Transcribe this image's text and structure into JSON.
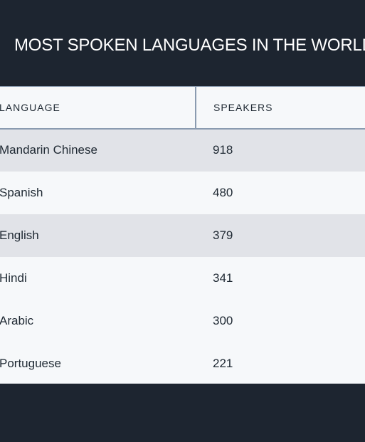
{
  "page": {
    "title": "MOST SPOKEN LANGUAGES IN THE WORLD."
  },
  "table": {
    "headers": {
      "language": "LANGUAGE",
      "speakers": "SPEAKERS"
    },
    "rows": [
      {
        "language": "Mandarin Chinese",
        "speakers": "918"
      },
      {
        "language": "Spanish",
        "speakers": "480"
      },
      {
        "language": "English",
        "speakers": "379"
      },
      {
        "language": "Hindi",
        "speakers": "341"
      },
      {
        "language": "Arabic",
        "speakers": "300"
      },
      {
        "language": "Portuguese",
        "speakers": "221"
      }
    ]
  },
  "colors": {
    "background": "#1d2530",
    "table_background": "#f6f8fa",
    "striped_row": "#e1e3e8",
    "border": "#8a9bb0"
  }
}
